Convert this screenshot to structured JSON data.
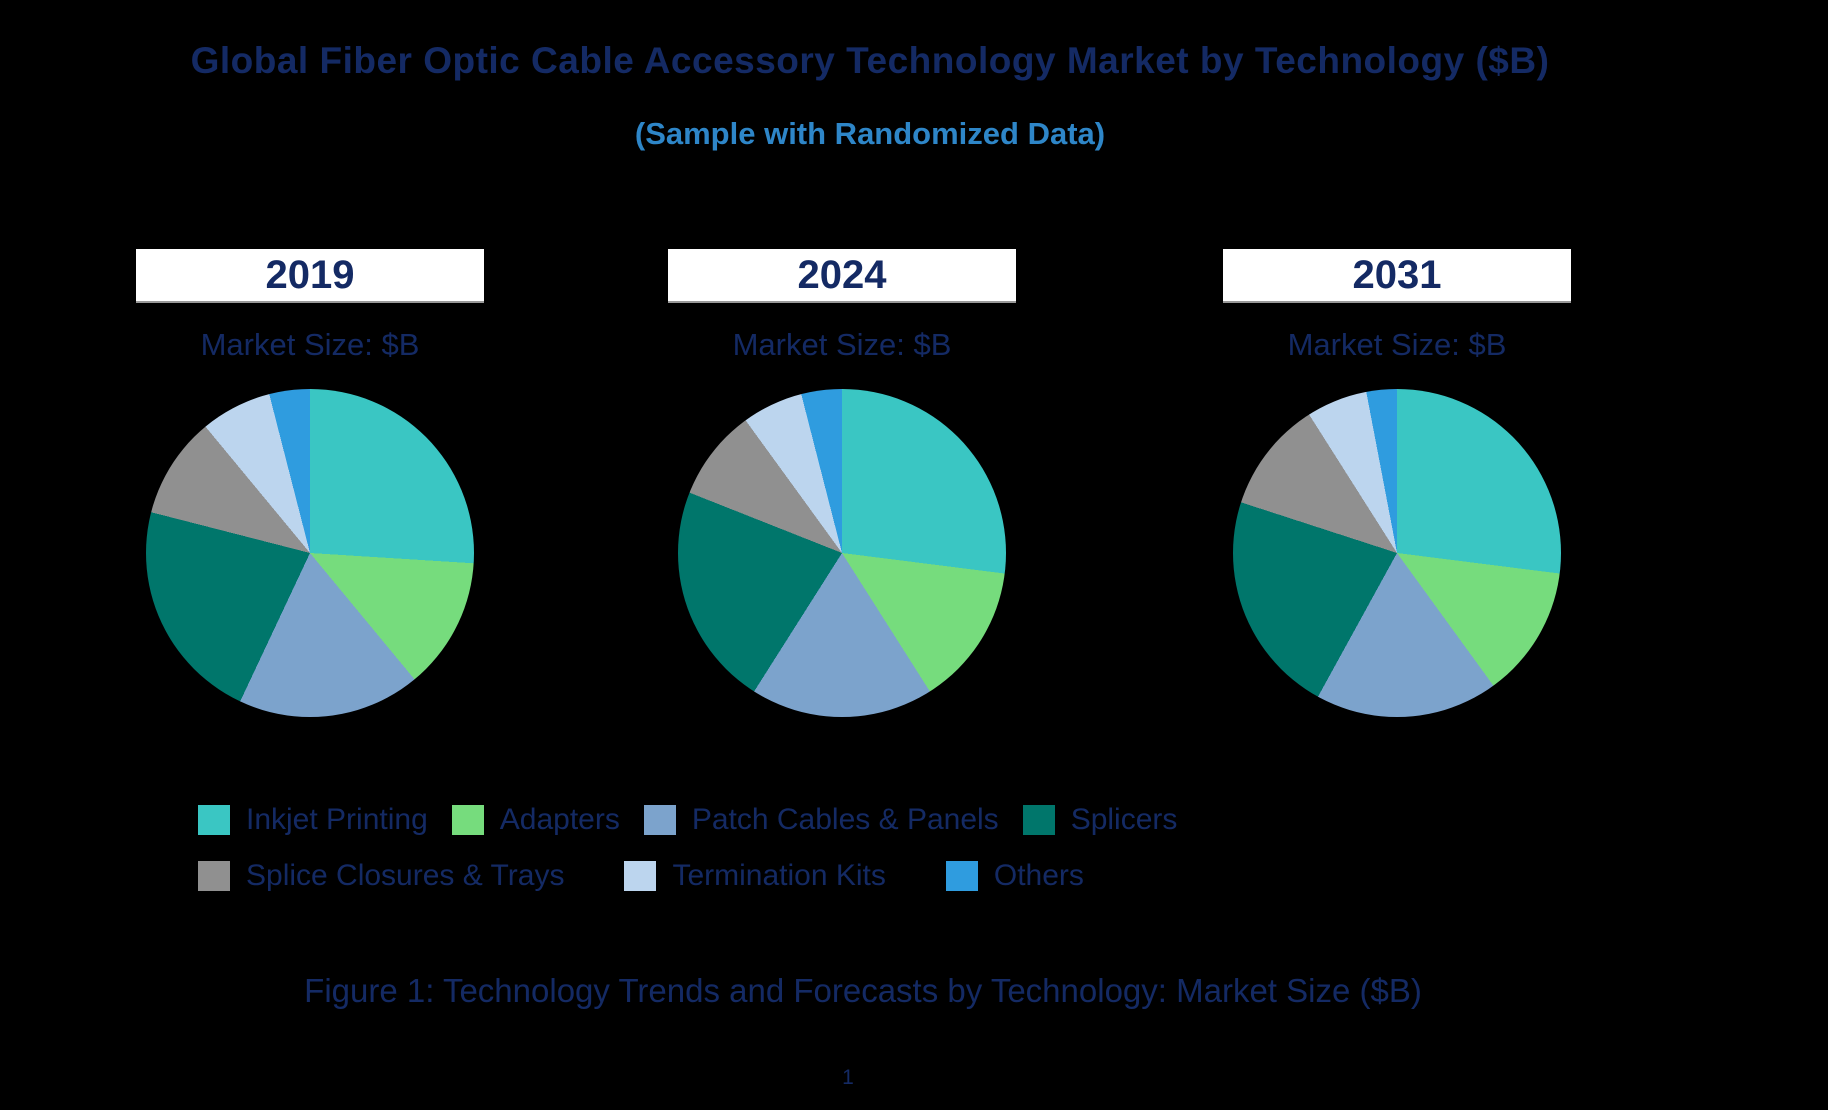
{
  "title": "Global Fiber Optic Cable Accessory Technology Market by Technology ($B)",
  "subtitle": "(Sample with Randomized Data)",
  "columns": [
    {
      "year": "2019",
      "market_size_label": "Market Size: $B"
    },
    {
      "year": "2024",
      "market_size_label": "Market Size: $B"
    },
    {
      "year": "2031",
      "market_size_label": "Market Size: $B"
    }
  ],
  "legend": {
    "items": [
      "Inkjet Printing",
      "Adapters",
      "Patch Cables & Panels",
      "Splicers",
      "Splice Closures & Trays",
      "Termination Kits",
      "Others"
    ]
  },
  "caption": "Figure 1: Technology Trends and Forecasts by Technology: Market Size ($B)",
  "page_number": "1",
  "colors": {
    "background": "#000000",
    "title_navy": "#142A64",
    "subtitle_blue": "#2E86C8",
    "year_box_bg": "#FFFFFF"
  },
  "chart_data": {
    "type": "pie",
    "title": "Global Fiber Optic Cable Accessory Technology Market by Technology ($B)",
    "subtitle": "(Sample with Randomized Data)",
    "legend_position": "bottom",
    "unit": "percent share of market size ($B)",
    "categories": [
      "Inkjet Printing",
      "Adapters",
      "Patch Cables & Panels",
      "Splicers",
      "Splice Closures & Trays",
      "Termination Kits",
      "Others"
    ],
    "colors": [
      "#3AC6C3",
      "#76DC7D",
      "#7CA3CC",
      "#00766B",
      "#909090",
      "#BCD5EE",
      "#2F9CDF"
    ],
    "pies": [
      {
        "year": "2019",
        "values": [
          26,
          13,
          18,
          22,
          10,
          7,
          4
        ]
      },
      {
        "year": "2024",
        "values": [
          27,
          14,
          18,
          22,
          9,
          6,
          4
        ]
      },
      {
        "year": "2031",
        "values": [
          27,
          13,
          18,
          22,
          11,
          6,
          3
        ]
      }
    ]
  }
}
